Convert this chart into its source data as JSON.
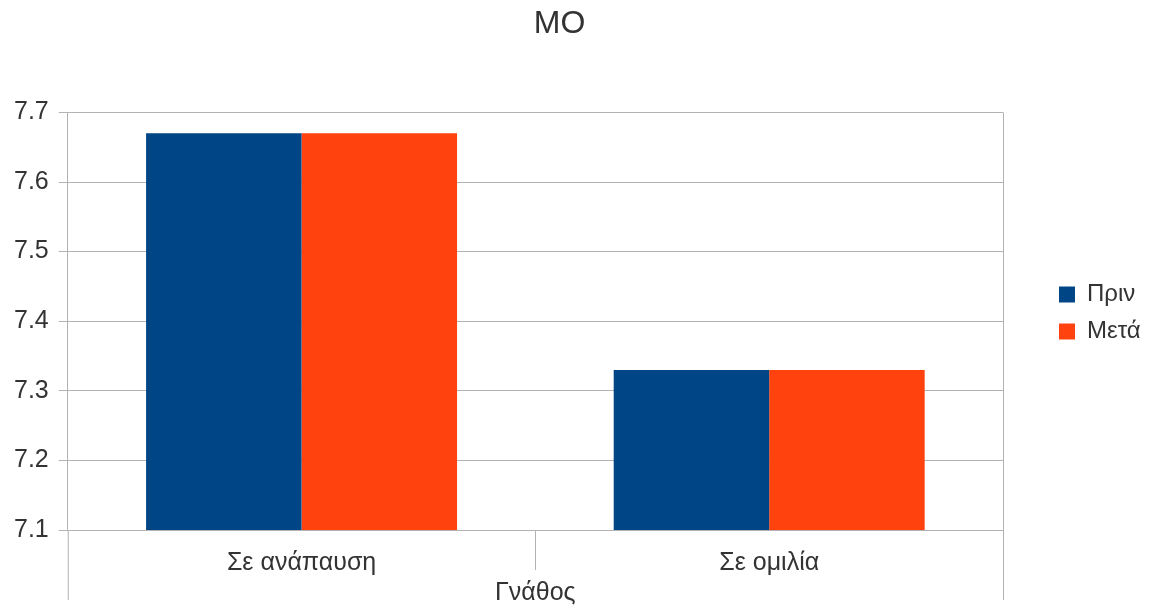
{
  "chart_data": {
    "type": "bar",
    "title": "MO",
    "xlabel": "Γνάθος",
    "categories": [
      "Σε ανάπαυση",
      "Σε ομιλία"
    ],
    "series": [
      {
        "name": "Πριν",
        "color": "#004586",
        "values": [
          7.67,
          7.33
        ]
      },
      {
        "name": "Μετά",
        "color": "#ff420e",
        "values": [
          7.67,
          7.33
        ]
      }
    ],
    "ylim": [
      7.1,
      7.7
    ],
    "yticks": [
      7.1,
      7.2,
      7.3,
      7.4,
      7.5,
      7.6,
      7.7
    ],
    "grid": "y",
    "legend": "right"
  }
}
